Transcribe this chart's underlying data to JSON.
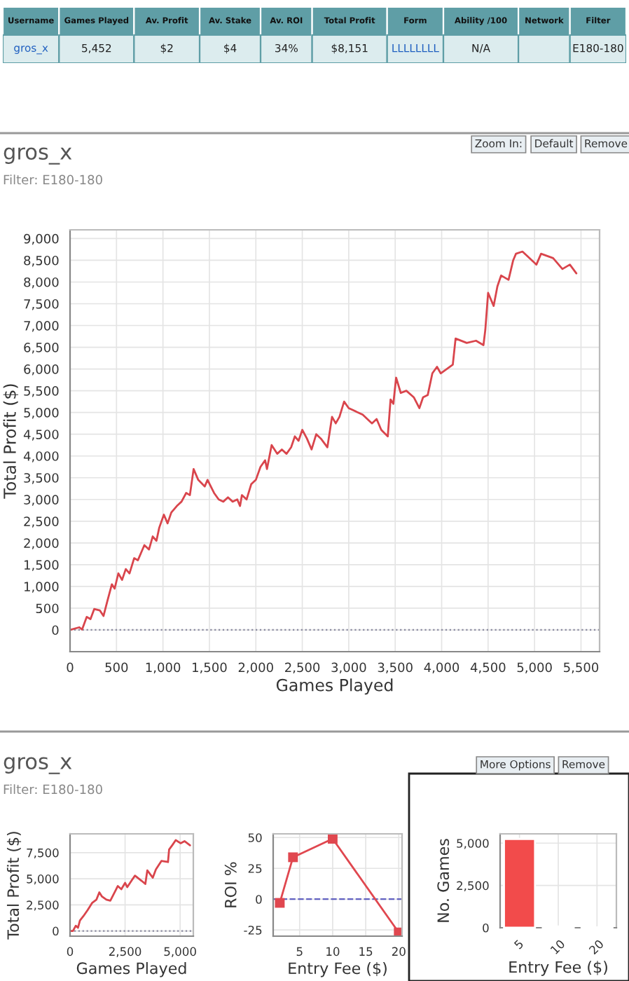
{
  "chart_data": [
    {
      "type": "other",
      "categories": [
        "Username",
        "Games Played",
        "Av. Profit",
        "Av. Stake",
        "Av. ROI",
        "Total Profit",
        "Form",
        "Ability /100",
        "Network",
        "Filter"
      ],
      "cell_labels": [
        [
          "gros_x",
          "5,452",
          "$2",
          "$4",
          "34%",
          "$8,151",
          "LLLLLLLL",
          "N/A",
          null,
          "E180-180"
        ]
      ]
    },
    {
      "type": "line",
      "title": "gros_x",
      "subtitle": "Filter: E180-180",
      "xlabel": "Games Played",
      "ylabel": "Total Profit ($)",
      "annotations": [
        "Zoom In:",
        "Default",
        "Remove"
      ],
      "xlim": [
        0,
        5700
      ],
      "xticks": [
        {
          "value": 0,
          "label": "0"
        },
        {
          "value": 500,
          "label": "500"
        },
        {
          "value": 1000,
          "label": "1,000"
        },
        {
          "value": 1500,
          "label": "1,500"
        },
        {
          "value": 2000,
          "label": "2,000"
        },
        {
          "value": 2500,
          "label": "2,500"
        },
        {
          "value": 3000,
          "label": "3,000"
        },
        {
          "value": 3500,
          "label": "3,500"
        },
        {
          "value": 4000,
          "label": "4,000"
        },
        {
          "value": 4500,
          "label": "4,500"
        },
        {
          "value": 5000,
          "label": "5,000"
        },
        {
          "value": 5500,
          "label": "5,500"
        }
      ],
      "ylim": [
        -500,
        9200
      ],
      "yticks": [
        {
          "value": 0,
          "label": "0"
        },
        {
          "value": 500,
          "label": "500"
        },
        {
          "value": 1000,
          "label": "1,000"
        },
        {
          "value": 1500,
          "label": "1,500"
        },
        {
          "value": 2000,
          "label": "2,000"
        },
        {
          "value": 2500,
          "label": "2,500"
        },
        {
          "value": 3000,
          "label": "3,000"
        },
        {
          "value": 3500,
          "label": "3,500"
        },
        {
          "value": 4000,
          "label": "4,000"
        },
        {
          "value": 4500,
          "label": "4,500"
        },
        {
          "value": 5000,
          "label": "5,000"
        },
        {
          "value": 5500,
          "label": "5,500"
        },
        {
          "value": 6000,
          "label": "6,000"
        },
        {
          "value": 6500,
          "label": "6,500"
        },
        {
          "value": 7000,
          "label": "7,000"
        },
        {
          "value": 7500,
          "label": "7,500"
        },
        {
          "value": 8000,
          "label": "8,000"
        },
        {
          "value": 8500,
          "label": "8,500"
        },
        {
          "value": 9000,
          "label": "9,000"
        }
      ],
      "grid": true,
      "marker": "none",
      "line_style": "solid",
      "ref_lines": [
        {
          "axis": "y",
          "value": 0,
          "label": null,
          "color": "#8a8aa0",
          "line_style": "dotted"
        }
      ],
      "series": [
        {
          "color": "#d9454c",
          "x": [
            0,
            100,
            130,
            180,
            220,
            260,
            320,
            360,
            400,
            450,
            480,
            520,
            560,
            600,
            640,
            690,
            730,
            770,
            800,
            850,
            890,
            930,
            960,
            1010,
            1050,
            1090,
            1150,
            1200,
            1250,
            1290,
            1330,
            1380,
            1450,
            1480,
            1550,
            1600,
            1650,
            1700,
            1750,
            1800,
            1830,
            1850,
            1900,
            1950,
            2000,
            2050,
            2100,
            2120,
            2170,
            2230,
            2280,
            2330,
            2380,
            2420,
            2460,
            2500,
            2550,
            2600,
            2650,
            2700,
            2770,
            2820,
            2860,
            2900,
            2950,
            3000,
            3050,
            3150,
            3250,
            3300,
            3350,
            3420,
            3450,
            3480,
            3510,
            3560,
            3620,
            3700,
            3760,
            3800,
            3850,
            3900,
            3950,
            3990,
            4120,
            4150,
            4270,
            4370,
            4450,
            4470,
            4500,
            4560,
            4600,
            4640,
            4720,
            4770,
            4800,
            4870,
            5020,
            5070,
            5200,
            5300,
            5380,
            5450
          ],
          "values": [
            0,
            60,
            10,
            300,
            250,
            480,
            450,
            320,
            650,
            1050,
            950,
            1300,
            1150,
            1400,
            1300,
            1650,
            1600,
            1800,
            1950,
            1850,
            2150,
            2050,
            2350,
            2650,
            2450,
            2700,
            2850,
            2950,
            3150,
            3100,
            3700,
            3450,
            3300,
            3450,
            3150,
            3000,
            2950,
            3050,
            2950,
            3000,
            2850,
            3100,
            3000,
            3350,
            3450,
            3750,
            3900,
            3700,
            4250,
            4050,
            4150,
            4050,
            4200,
            4450,
            4350,
            4600,
            4400,
            4150,
            4500,
            4400,
            4200,
            4900,
            4750,
            4900,
            5250,
            5100,
            5050,
            4950,
            4750,
            4850,
            4600,
            4450,
            5300,
            5200,
            5800,
            5450,
            5500,
            5350,
            5100,
            5350,
            5400,
            5900,
            6050,
            5900,
            6100,
            6700,
            6600,
            6650,
            6550,
            6900,
            7750,
            7450,
            7900,
            8150,
            8050,
            8500,
            8650,
            8700,
            8400,
            8650,
            8550,
            8300,
            8400,
            8200
          ]
        }
      ]
    },
    {
      "type": "line",
      "title": "gros_x",
      "subtitle": "Filter: E180-180",
      "xlabel": "Games Played",
      "ylabel": "Total Profit ($)",
      "xlim": [
        0,
        5600
      ],
      "xticks": [
        {
          "value": 0,
          "label": "0"
        },
        {
          "value": 2500,
          "label": "2,500"
        },
        {
          "value": 5000,
          "label": "5,000"
        }
      ],
      "ylim": [
        -500,
        9300
      ],
      "yticks": [
        {
          "value": 0,
          "label": "0"
        },
        {
          "value": 2500,
          "label": "2,500"
        },
        {
          "value": 5000,
          "label": "5,000"
        },
        {
          "value": 7500,
          "label": "7,500"
        }
      ],
      "grid": true,
      "marker": "none",
      "line_style": "solid",
      "ref_lines": [
        {
          "axis": "y",
          "value": 0,
          "label": null,
          "color": "#8a8aa0",
          "line_style": "dotted"
        }
      ],
      "series": [
        {
          "color": "#d9454c",
          "x": [
            0,
            130,
            260,
            360,
            450,
            600,
            800,
            1010,
            1200,
            1330,
            1450,
            1650,
            1830,
            2050,
            2170,
            2330,
            2500,
            2600,
            2820,
            2950,
            3250,
            3420,
            3510,
            3760,
            3900,
            4150,
            4450,
            4500,
            4640,
            4800,
            5020,
            5200,
            5450
          ],
          "values": [
            0,
            0,
            500,
            300,
            1000,
            1400,
            2000,
            2700,
            3000,
            3700,
            3300,
            3000,
            2900,
            3800,
            4300,
            4000,
            4600,
            4200,
            4900,
            5300,
            4800,
            4500,
            5800,
            5100,
            5900,
            6700,
            6600,
            7800,
            8200,
            8700,
            8400,
            8600,
            8200
          ]
        }
      ]
    },
    {
      "type": "line",
      "xlabel": "Entry Fee ($)",
      "ylabel": "ROI %",
      "xlim": [
        1,
        20.5
      ],
      "xticks": [
        5,
        10,
        15,
        20
      ],
      "ylim": [
        -30,
        53
      ],
      "yticks": [
        -25,
        0,
        25,
        50
      ],
      "grid": true,
      "marker": "square",
      "line_style": "solid",
      "ref_lines": [
        {
          "axis": "y",
          "value": 0,
          "label": null,
          "color": "#6060c0",
          "line_style": "dashed"
        }
      ],
      "series": [
        {
          "color": "#e0474f",
          "x": [
            2,
            4,
            10,
            20
          ],
          "values": [
            -3,
            34,
            49,
            -27
          ]
        }
      ]
    },
    {
      "type": "bar",
      "xlabel": "Entry Fee ($)",
      "ylabel": "No. Games",
      "annotations": [
        "More Options",
        "Remove"
      ],
      "categories": [
        "5",
        "10",
        "20"
      ],
      "values": [
        5250,
        80,
        30
      ],
      "color": "#f24b4b",
      "ylim": [
        0,
        5550
      ],
      "yticks": [
        {
          "value": 0,
          "label": "0"
        },
        {
          "value": 2500,
          "label": "2,500"
        },
        {
          "value": 5000,
          "label": "5,000"
        }
      ],
      "grid": true
    }
  ]
}
